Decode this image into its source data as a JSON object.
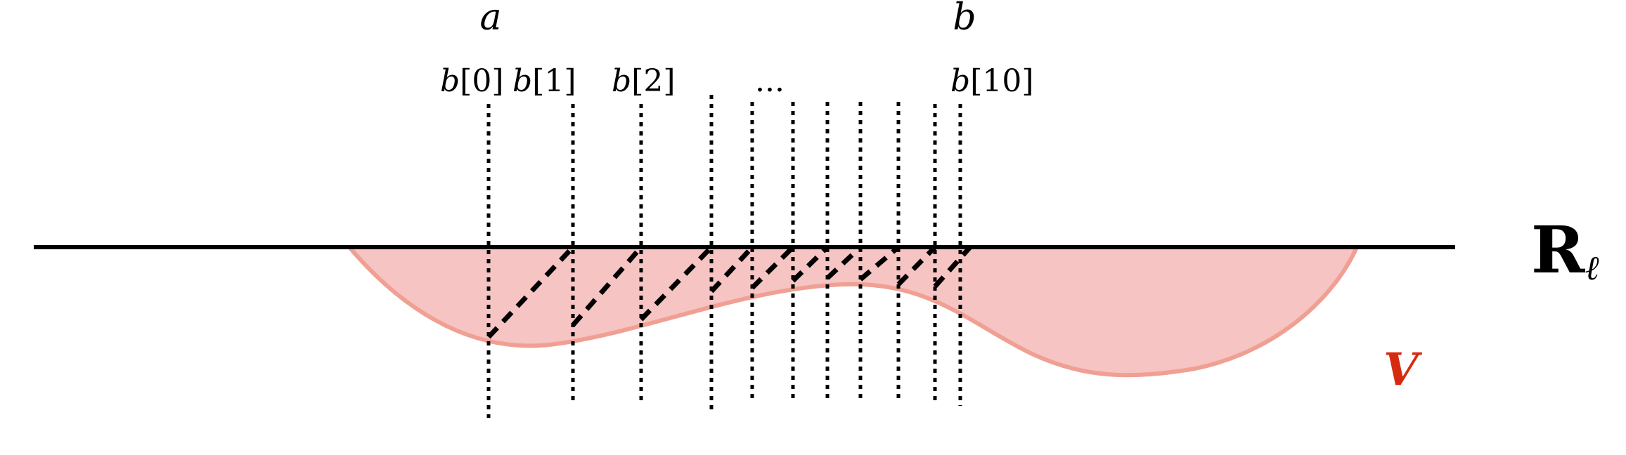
{
  "labels": {
    "a": "a",
    "b": "b",
    "b0_var": "b",
    "b0_idx": "[0]",
    "b1_var": "b",
    "b1_idx": "[1]",
    "b2_var": "b",
    "b2_idx": "[2]",
    "dots": "...",
    "b10_var": "b",
    "b10_idx": "[10]",
    "space_main": "R",
    "space_sub": "ℓ",
    "region": "V"
  },
  "colors": {
    "region_fill": "#f5c4c3",
    "region_stroke": "#f0a093",
    "region_label": "#d62a10",
    "line": "#000000"
  }
}
